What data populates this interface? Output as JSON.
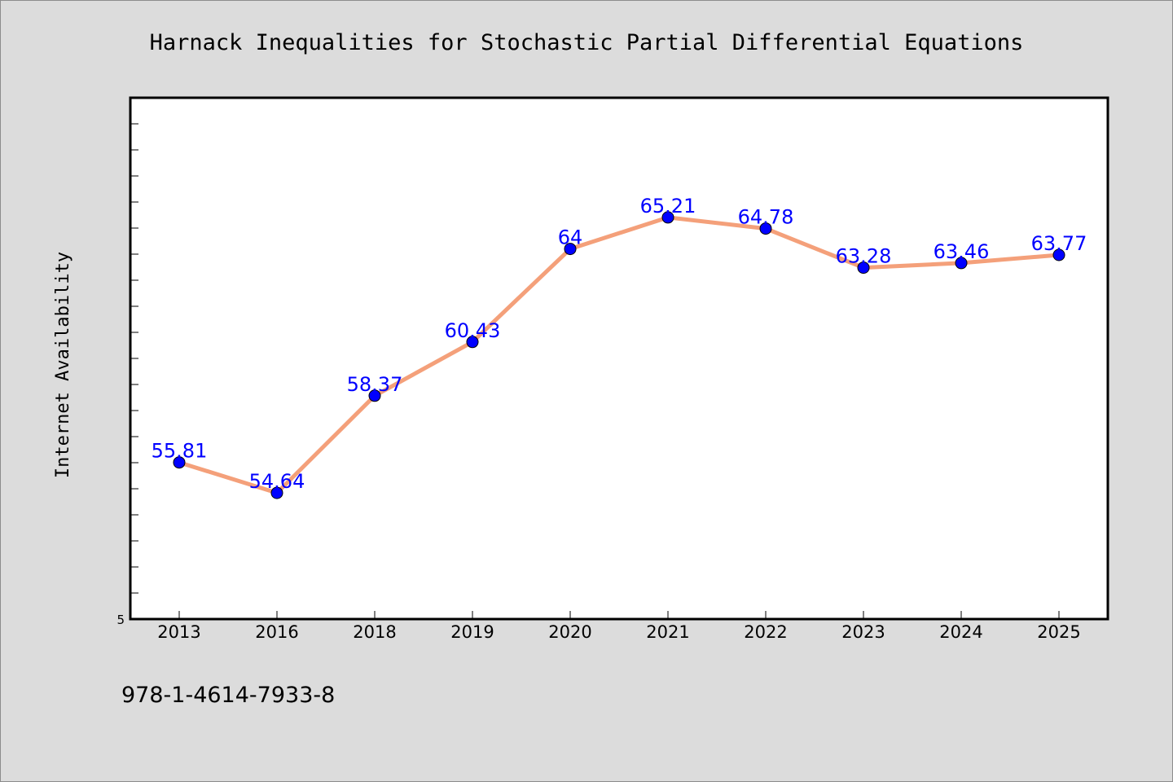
{
  "chart_data": {
    "type": "line",
    "title": "Harnack Inequalities for Stochastic Partial Differential Equations",
    "xlabel": "",
    "ylabel": "Internet Availability",
    "categories": [
      "2013",
      "2016",
      "2018",
      "2019",
      "2020",
      "2021",
      "2022",
      "2023",
      "2024",
      "2025"
    ],
    "series": [
      {
        "values": [
          55.81,
          54.64,
          58.37,
          60.43,
          64,
          65.21,
          64.78,
          63.28,
          63.46,
          63.77
        ],
        "data_labels": [
          "55.81",
          "54.64",
          "58.37",
          "60.43",
          "64",
          "65.21",
          "64.78",
          "63.28",
          "63.46",
          "63.77"
        ]
      }
    ],
    "y_tick_labels": [
      "5"
    ],
    "ylim": [
      49.8,
      69.8
    ],
    "grid": false,
    "legend": "none",
    "line_color": "#f4a07a",
    "marker_color": "#0000ff",
    "label_color": "#0000ff"
  },
  "footer": {
    "isbn": "978-1-4614-7933-8"
  }
}
